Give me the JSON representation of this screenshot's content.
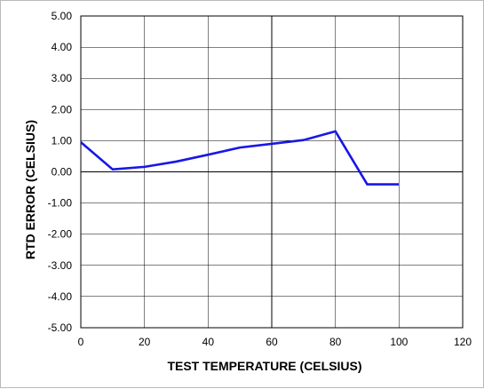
{
  "chart_data": {
    "type": "line",
    "title": "",
    "xlabel": "TEST TEMPERATURE (CELSIUS)",
    "ylabel": "RTD ERROR (CELSIUS)",
    "xlim": [
      0,
      120
    ],
    "ylim": [
      -5,
      5
    ],
    "xticks": [
      0,
      20,
      40,
      60,
      80,
      100,
      120
    ],
    "yticks": [
      5,
      4,
      3,
      2,
      1,
      0,
      -1,
      -2,
      -3,
      -4,
      -5
    ],
    "xtick_labels": [
      "0",
      "20",
      "40",
      "60",
      "80",
      "100",
      "120"
    ],
    "ytick_labels": [
      "5.00",
      "4.00",
      "3.00",
      "2.00",
      "1.00",
      "0.00",
      "-1.00",
      "-2.00",
      "-3.00",
      "-4.00",
      "-5.00"
    ],
    "grid": true,
    "legend": "none",
    "series": [
      {
        "color": "#1717e6",
        "x": [
          0,
          10,
          20,
          30,
          40,
          50,
          60,
          70,
          80,
          90,
          100
        ],
        "y": [
          0.95,
          0.08,
          0.16,
          0.33,
          0.55,
          0.78,
          0.9,
          1.02,
          1.3,
          -0.4,
          -0.4
        ]
      }
    ]
  }
}
